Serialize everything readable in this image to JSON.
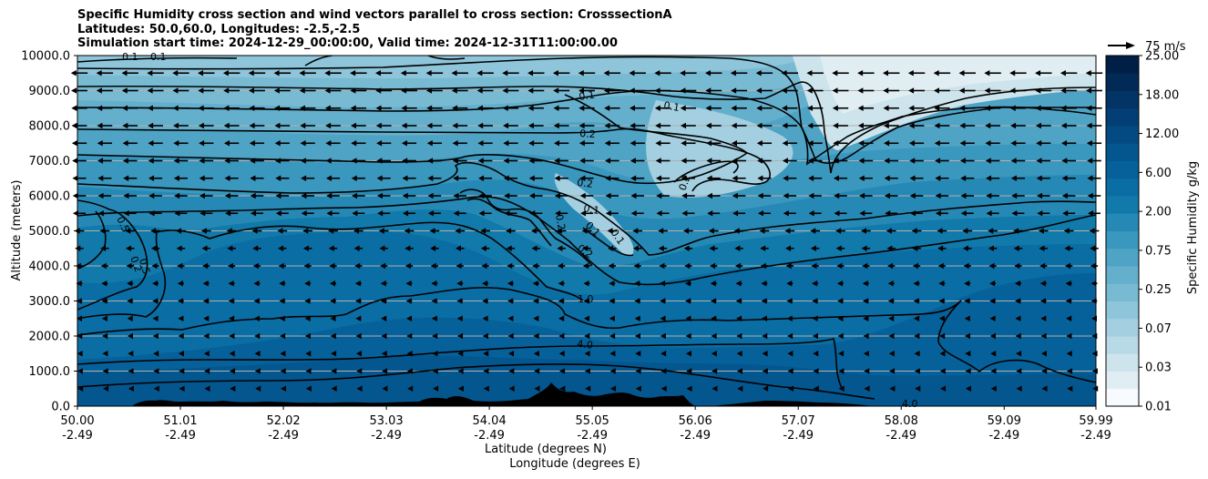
{
  "titles": {
    "line1": "Specific Humidity cross section and wind vectors parallel to cross section: CrosssectionA",
    "line2": "Latitudes: 50.0,60.0, Longitudes: -2.5,-2.5",
    "line3": "Simulation start time: 2024-12-29_00:00:00, Valid time: 2024-12-31T11:00:00.00"
  },
  "chart_data": {
    "type": "heatmap",
    "title": "Specific Humidity cross section and wind vectors parallel to cross section: CrosssectionA",
    "ylabel": "Altitude (meters)",
    "xlabel_line1": "Latitude (degrees N)",
    "xlabel_line2": "Longitude (degrees E)",
    "ylim": [
      0,
      10000
    ],
    "xlim": [
      50.0,
      59.99
    ],
    "y_ticks": [
      "0.0",
      "1000.0",
      "2000.0",
      "3000.0",
      "4000.0",
      "5000.0",
      "6000.0",
      "7000.0",
      "8000.0",
      "9000.0",
      "10000.0"
    ],
    "x_ticks": [
      {
        "lat": "50.00",
        "lon": "-2.49"
      },
      {
        "lat": "51.01",
        "lon": "-2.49"
      },
      {
        "lat": "52.02",
        "lon": "-2.49"
      },
      {
        "lat": "53.03",
        "lon": "-2.49"
      },
      {
        "lat": "54.04",
        "lon": "-2.49"
      },
      {
        "lat": "55.05",
        "lon": "-2.49"
      },
      {
        "lat": "56.06",
        "lon": "-2.49"
      },
      {
        "lat": "57.07",
        "lon": "-2.49"
      },
      {
        "lat": "58.08",
        "lon": "-2.49"
      },
      {
        "lat": "59.09",
        "lon": "-2.49"
      },
      {
        "lat": "59.99",
        "lon": "-2.49"
      }
    ],
    "grid": "horizontal",
    "colorbar": {
      "label": "Specific Humidity g/kg",
      "tick_labels": [
        "0.01",
        "0.03",
        "0.07",
        "0.25",
        "0.75",
        "2.00",
        "6.00",
        "12.00",
        "18.00",
        "25.00"
      ],
      "colors": [
        "#f7fbff",
        "#e0eef4",
        "#cde4ec",
        "#b8d9e6",
        "#a3cfe0",
        "#8ec5da",
        "#79bad3",
        "#64afcc",
        "#4fa3c5",
        "#3a97be",
        "#2689b5",
        "#117aaa",
        "#0a6da3",
        "#06619a",
        "#04568f",
        "#034a82",
        "#033f74",
        "#023465",
        "#012a56",
        "#001f47"
      ]
    },
    "contour_labels": [
      "0.1",
      "0.1",
      "0.1",
      "0.1",
      "0.2",
      "0.2",
      "0.1",
      "0.1",
      "0.2",
      "0.2",
      "0.1",
      "0.2",
      "0.5",
      "0.5",
      "0.2",
      "1.0",
      "4.0",
      "4.0"
    ],
    "wind": {
      "reference_label": "75 m/s",
      "direction": "southward (leftward) in upper levels"
    },
    "terrain": "black silhouette near 0 m"
  }
}
